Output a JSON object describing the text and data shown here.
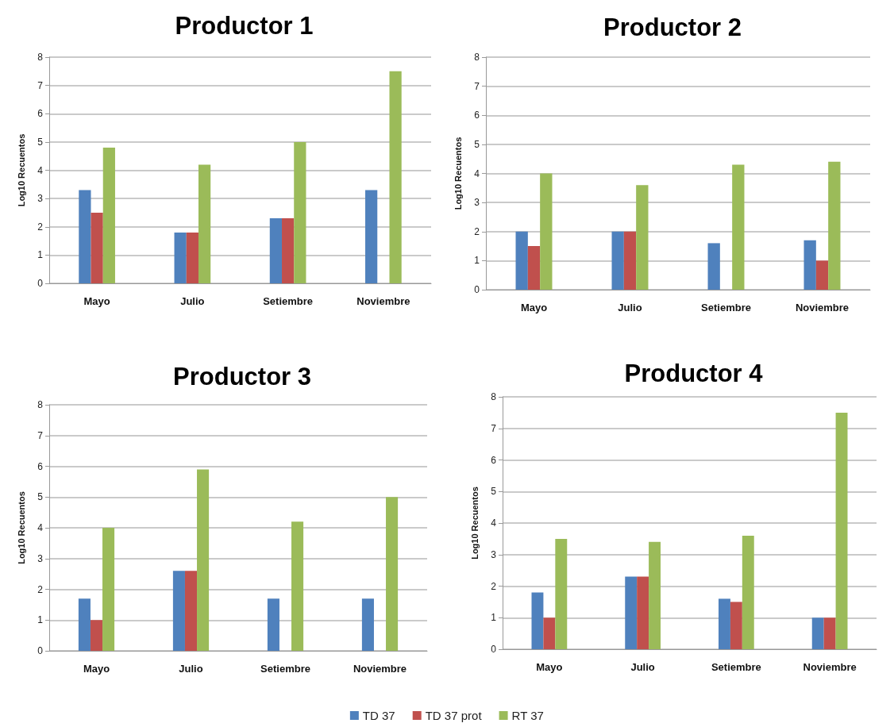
{
  "chart_data": [
    {
      "type": "bar",
      "title": "Productor 1",
      "ylabel": "Log10 Recuentos",
      "categories": [
        "Mayo",
        "Julio",
        "Setiembre",
        "Noviembre"
      ],
      "ylim": [
        0,
        8
      ],
      "yticks": [
        0,
        1,
        2,
        3,
        4,
        5,
        6,
        7,
        8
      ],
      "grid": "y",
      "series": [
        {
          "color": "#4f81bd",
          "values": [
            3.3,
            1.8,
            2.3,
            3.3
          ]
        },
        {
          "color": "#c0504d",
          "values": [
            2.5,
            1.8,
            2.3,
            null
          ]
        },
        {
          "color": "#9bbb59",
          "values": [
            4.8,
            4.2,
            5.0,
            7.5
          ]
        }
      ]
    },
    {
      "type": "bar",
      "title": "Productor 2",
      "ylabel": "Log10 Recuentos",
      "categories": [
        "Mayo",
        "Julio",
        "Setiembre",
        "Noviembre"
      ],
      "ylim": [
        0,
        8
      ],
      "yticks": [
        0,
        1,
        2,
        3,
        4,
        5,
        6,
        7,
        8
      ],
      "grid": "y",
      "series": [
        {
          "color": "#4f81bd",
          "values": [
            2.0,
            2.0,
            1.6,
            1.7
          ]
        },
        {
          "color": "#c0504d",
          "values": [
            1.5,
            2.0,
            null,
            1.0
          ]
        },
        {
          "color": "#9bbb59",
          "values": [
            4.0,
            3.6,
            4.3,
            4.4
          ]
        }
      ]
    },
    {
      "type": "bar",
      "title": "Productor 3",
      "ylabel": "Log10 Recuentos",
      "categories": [
        "Mayo",
        "Julio",
        "Setiembre",
        "Noviembre"
      ],
      "ylim": [
        0,
        8
      ],
      "yticks": [
        0,
        1,
        2,
        3,
        4,
        5,
        6,
        7,
        8
      ],
      "grid": "y",
      "series": [
        {
          "color": "#4f81bd",
          "values": [
            1.7,
            2.6,
            1.7,
            1.7
          ]
        },
        {
          "color": "#c0504d",
          "values": [
            1.0,
            2.6,
            null,
            null
          ]
        },
        {
          "color": "#9bbb59",
          "values": [
            4.0,
            5.9,
            4.2,
            5.0
          ]
        }
      ]
    },
    {
      "type": "bar",
      "title": "Productor 4",
      "ylabel": "Log10 Recuentos",
      "categories": [
        "Mayo",
        "Julio",
        "Setiembre",
        "Noviembre"
      ],
      "ylim": [
        0,
        8
      ],
      "yticks": [
        0,
        1,
        2,
        3,
        4,
        5,
        6,
        7,
        8
      ],
      "grid": "y",
      "legend": "bottom",
      "series": [
        {
          "name": "TD 37",
          "color": "#4f81bd",
          "values": [
            1.8,
            2.3,
            1.6,
            1.0
          ]
        },
        {
          "name": "TD 37 prot",
          "color": "#c0504d",
          "values": [
            1.0,
            2.3,
            1.5,
            1.0
          ]
        },
        {
          "name": "RT 37",
          "color": "#9bbb59",
          "values": [
            3.5,
            3.4,
            3.6,
            7.5
          ]
        }
      ]
    }
  ]
}
